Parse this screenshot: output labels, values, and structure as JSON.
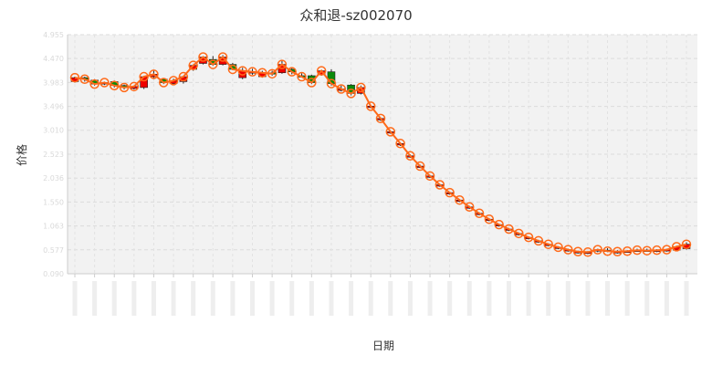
{
  "chart_data": {
    "type": "candlestick",
    "title": "众和退-sz002070",
    "xlabel": "日期",
    "ylabel": "价格",
    "ylim": [
      0.09,
      4.955
    ],
    "yticks": [
      0.09,
      0.577,
      1.063,
      1.55,
      2.036,
      2.523,
      3.01,
      3.496,
      3.983,
      4.47,
      4.955
    ],
    "grid": true,
    "x_tick_labels_legible": false,
    "colors": {
      "up": "#ee0000",
      "down": "#0b8a0b",
      "close_line": "#ff6a1a",
      "plot_bg": "#f2f2f2",
      "grid": "#dddddd"
    },
    "series": [
      {
        "name": "candles",
        "ohlc": [
          [
            4.0,
            4.1,
            3.98,
            4.08
          ],
          [
            4.08,
            4.1,
            4.0,
            4.05
          ],
          [
            4.03,
            4.05,
            3.92,
            3.95
          ],
          [
            3.95,
            4.0,
            3.93,
            3.98
          ],
          [
            4.0,
            4.02,
            3.88,
            3.92
          ],
          [
            3.92,
            3.94,
            3.84,
            3.88
          ],
          [
            3.86,
            3.92,
            3.84,
            3.9
          ],
          [
            3.88,
            4.12,
            3.85,
            4.1
          ],
          [
            4.1,
            4.22,
            4.05,
            4.15
          ],
          [
            4.05,
            4.07,
            3.95,
            3.98
          ],
          [
            3.96,
            4.06,
            3.94,
            4.02
          ],
          [
            4.0,
            4.12,
            3.96,
            4.1
          ],
          [
            4.25,
            4.35,
            4.22,
            4.33
          ],
          [
            4.37,
            4.52,
            4.35,
            4.5
          ],
          [
            4.45,
            4.52,
            4.32,
            4.35
          ],
          [
            4.35,
            4.54,
            4.33,
            4.5
          ],
          [
            4.35,
            4.38,
            4.23,
            4.25
          ],
          [
            4.08,
            4.28,
            4.05,
            4.22
          ],
          [
            4.2,
            4.26,
            4.14,
            4.2
          ],
          [
            4.1,
            4.22,
            4.08,
            4.18
          ],
          [
            4.18,
            4.22,
            4.12,
            4.16
          ],
          [
            4.18,
            4.42,
            4.16,
            4.35
          ],
          [
            4.25,
            4.28,
            4.15,
            4.2
          ],
          [
            4.12,
            4.17,
            4.09,
            4.1
          ],
          [
            4.12,
            4.14,
            3.95,
            3.98
          ],
          [
            4.14,
            4.24,
            4.12,
            4.22
          ],
          [
            4.2,
            4.25,
            3.92,
            3.96
          ],
          [
            3.82,
            3.92,
            3.8,
            3.85
          ],
          [
            3.93,
            3.95,
            3.72,
            3.76
          ],
          [
            3.76,
            3.92,
            3.74,
            3.88
          ],
          [
            3.48,
            3.52,
            3.46,
            3.5
          ],
          [
            3.22,
            3.27,
            3.2,
            3.25
          ],
          [
            2.96,
            3.0,
            2.94,
            2.98
          ],
          [
            2.71,
            2.76,
            2.69,
            2.74
          ],
          [
            2.47,
            2.52,
            2.45,
            2.49
          ],
          [
            2.26,
            2.31,
            2.24,
            2.28
          ],
          [
            2.06,
            2.1,
            2.04,
            2.08
          ],
          [
            1.88,
            1.92,
            1.86,
            1.9
          ],
          [
            1.72,
            1.76,
            1.7,
            1.74
          ],
          [
            1.57,
            1.61,
            1.55,
            1.59
          ],
          [
            1.43,
            1.47,
            1.41,
            1.45
          ],
          [
            1.3,
            1.34,
            1.28,
            1.32
          ],
          [
            1.18,
            1.22,
            1.16,
            1.2
          ],
          [
            1.07,
            1.11,
            1.05,
            1.09
          ],
          [
            0.98,
            1.02,
            0.96,
            1.0
          ],
          [
            0.89,
            0.93,
            0.87,
            0.91
          ],
          [
            0.81,
            0.85,
            0.79,
            0.83
          ],
          [
            0.74,
            0.78,
            0.72,
            0.76
          ],
          [
            0.67,
            0.71,
            0.65,
            0.69
          ],
          [
            0.61,
            0.65,
            0.59,
            0.63
          ],
          [
            0.56,
            0.6,
            0.54,
            0.58
          ],
          [
            0.52,
            0.56,
            0.5,
            0.54
          ],
          [
            0.51,
            0.55,
            0.49,
            0.53
          ],
          [
            0.55,
            0.6,
            0.53,
            0.58
          ],
          [
            0.57,
            0.61,
            0.53,
            0.55
          ],
          [
            0.52,
            0.57,
            0.5,
            0.54
          ],
          [
            0.54,
            0.57,
            0.52,
            0.55
          ],
          [
            0.56,
            0.6,
            0.54,
            0.57
          ],
          [
            0.57,
            0.6,
            0.54,
            0.56
          ],
          [
            0.55,
            0.59,
            0.53,
            0.57
          ],
          [
            0.56,
            0.6,
            0.54,
            0.58
          ],
          [
            0.57,
            0.66,
            0.55,
            0.64
          ],
          [
            0.6,
            0.73,
            0.58,
            0.69
          ]
        ]
      },
      {
        "name": "close",
        "values": [
          4.08,
          4.05,
          3.95,
          3.98,
          3.92,
          3.88,
          3.9,
          4.1,
          4.15,
          3.98,
          4.02,
          4.1,
          4.33,
          4.5,
          4.35,
          4.5,
          4.25,
          4.22,
          4.2,
          4.18,
          4.16,
          4.35,
          4.2,
          4.1,
          3.98,
          4.22,
          3.96,
          3.85,
          3.76,
          3.88,
          3.5,
          3.25,
          2.98,
          2.74,
          2.49,
          2.28,
          2.08,
          1.9,
          1.74,
          1.59,
          1.45,
          1.32,
          1.2,
          1.09,
          1.0,
          0.91,
          0.83,
          0.76,
          0.69,
          0.63,
          0.58,
          0.54,
          0.53,
          0.58,
          0.55,
          0.54,
          0.55,
          0.57,
          0.56,
          0.57,
          0.58,
          0.64,
          0.69
        ]
      }
    ]
  }
}
